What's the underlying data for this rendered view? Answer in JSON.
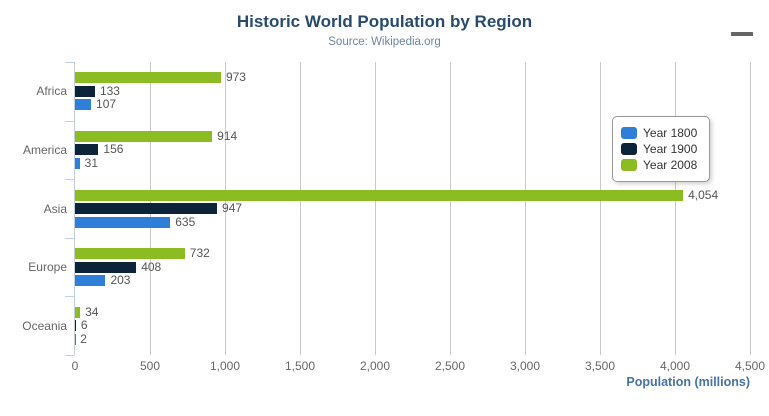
{
  "chart_data": {
    "type": "bar",
    "orientation": "horizontal",
    "title": "Historic World Population by Region",
    "subtitle": "Source: Wikipedia.org",
    "categories": [
      "Africa",
      "America",
      "Asia",
      "Europe",
      "Oceania"
    ],
    "series": [
      {
        "name": "Year 1800",
        "color": "#2f7ed8",
        "values": [
          107,
          31,
          635,
          203,
          2
        ]
      },
      {
        "name": "Year 1900",
        "color": "#0d233a",
        "values": [
          133,
          156,
          947,
          408,
          6
        ]
      },
      {
        "name": "Year 2008",
        "color": "#8bbc21",
        "values": [
          973,
          914,
          4054,
          732,
          34
        ]
      }
    ],
    "bar_order_top_to_bottom": [
      "Year 2008",
      "Year 1900",
      "Year 1800"
    ],
    "xlabel": "Population (millions)",
    "ylabel": "",
    "xlim": [
      0,
      4500
    ],
    "x_ticks": [
      0,
      500,
      1000,
      1500,
      2000,
      2500,
      3000,
      3500,
      4000,
      4500
    ],
    "x_tick_labels": [
      "0",
      "500",
      "1,000",
      "1,500",
      "2,000",
      "2,500",
      "3,000",
      "3,500",
      "4,000",
      "4,500"
    ],
    "grid": true,
    "legend_position": "right",
    "data_labels": true
  },
  "menu": {
    "icon": "hamburger-export-menu"
  },
  "colors": {
    "title": "#274b6d",
    "subtitle": "#6d869f",
    "gridline": "#c9c9c9",
    "axis_line": "#c0d0e0",
    "tick_label": "#666666",
    "data_label": "#555555",
    "axis_title": "#4572a7",
    "legend_border": "#999999",
    "menu_icon": "#666666",
    "background": "#ffffff"
  }
}
